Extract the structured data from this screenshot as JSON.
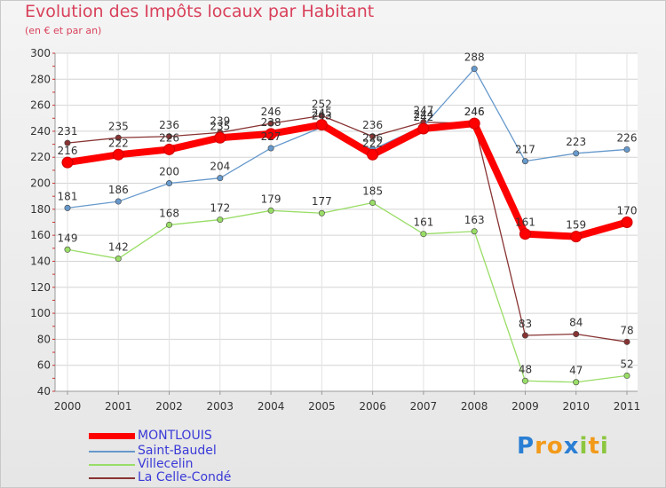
{
  "page": {
    "title": "Evolution des Impôts locaux par Habitant",
    "subtitle": "(en € et par an)"
  },
  "chart_data": {
    "type": "line",
    "title": "Evolution des Impôts locaux par Habitant",
    "subtitle": "(en € et par an)",
    "xlabel": "",
    "ylabel": "",
    "x": [
      "2000",
      "2001",
      "2002",
      "2003",
      "2004",
      "2005",
      "2006",
      "2007",
      "2008",
      "2009",
      "2010",
      "2011"
    ],
    "ylim": [
      40,
      300
    ],
    "yticks": [
      40,
      60,
      80,
      100,
      120,
      140,
      160,
      180,
      200,
      220,
      240,
      260,
      280,
      300
    ],
    "grid": "horizontal",
    "legend_position": "bottom-left",
    "series": [
      {
        "name": "MONTLOUIS",
        "color": "#ff0000",
        "values": [
          216,
          222,
          226,
          235,
          238,
          245,
          222,
          242,
          246,
          161,
          159,
          170
        ]
      },
      {
        "name": "Saint-Baudel",
        "color": "#6699cc",
        "values": [
          181,
          186,
          200,
          204,
          227,
          243,
          226,
          244,
          288,
          217,
          223,
          226
        ]
      },
      {
        "name": "Villecelin",
        "color": "#99dd66",
        "values": [
          149,
          142,
          168,
          172,
          179,
          177,
          185,
          161,
          163,
          48,
          47,
          52
        ]
      },
      {
        "name": "La Celle-Condé",
        "color": "#883333",
        "values": [
          231,
          235,
          236,
          239,
          246,
          252,
          236,
          247,
          246,
          83,
          84,
          78
        ]
      }
    ]
  },
  "legend": {
    "items": [
      "MONTLOUIS",
      "Saint-Baudel",
      "Villecelin",
      "La Celle-Condé"
    ]
  },
  "logo": {
    "letters": [
      "P",
      "r",
      "o",
      "x",
      "i",
      "t",
      "i"
    ],
    "colors": [
      "#2a7fd4",
      "#f29a1a",
      "#f29a1a",
      "#2a7fd4",
      "#8cc63f",
      "#f29a1a",
      "#8cc63f"
    ]
  }
}
